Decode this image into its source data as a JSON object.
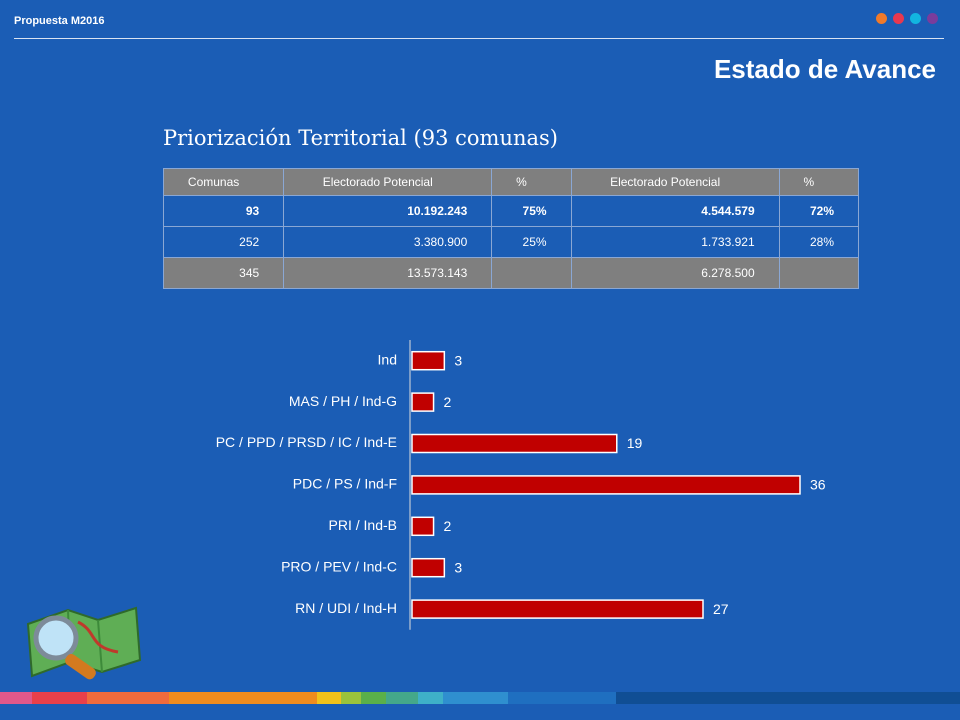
{
  "header": {
    "brand": "Propuesta M2016",
    "title": "Estado de Avance",
    "subtitle": "Priorización Territorial (93 comunas)"
  },
  "table": {
    "columns": [
      "Comunas",
      "Electorado  Potencial",
      "%",
      "Electorado  Potencial",
      "%"
    ],
    "rows": [
      {
        "comunas": "93",
        "electorado_1": "10.192.243",
        "pct_1": "75%",
        "electorado_2": "4.544.579",
        "pct_2": "72%"
      },
      {
        "comunas": "252",
        "electorado_1": "3.380.900",
        "pct_1": "25%",
        "electorado_2": "1.733.921",
        "pct_2": "28%"
      },
      {
        "comunas": "345",
        "electorado_1": "13.573.143",
        "electorado_2": "6.278.500"
      }
    ]
  },
  "chart_data": {
    "type": "hbar",
    "categories": [
      "Ind",
      "MAS / PH / Ind-G",
      "PC / PPD / PRSD / IC / Ind-E",
      "PDC / PS / Ind-F",
      "PRI / Ind-B",
      "PRO / PEV / Ind-C",
      "RN / UDI / Ind-H"
    ],
    "values": [
      3,
      2,
      19,
      36,
      2,
      3,
      27
    ],
    "color": "#c00000"
  }
}
